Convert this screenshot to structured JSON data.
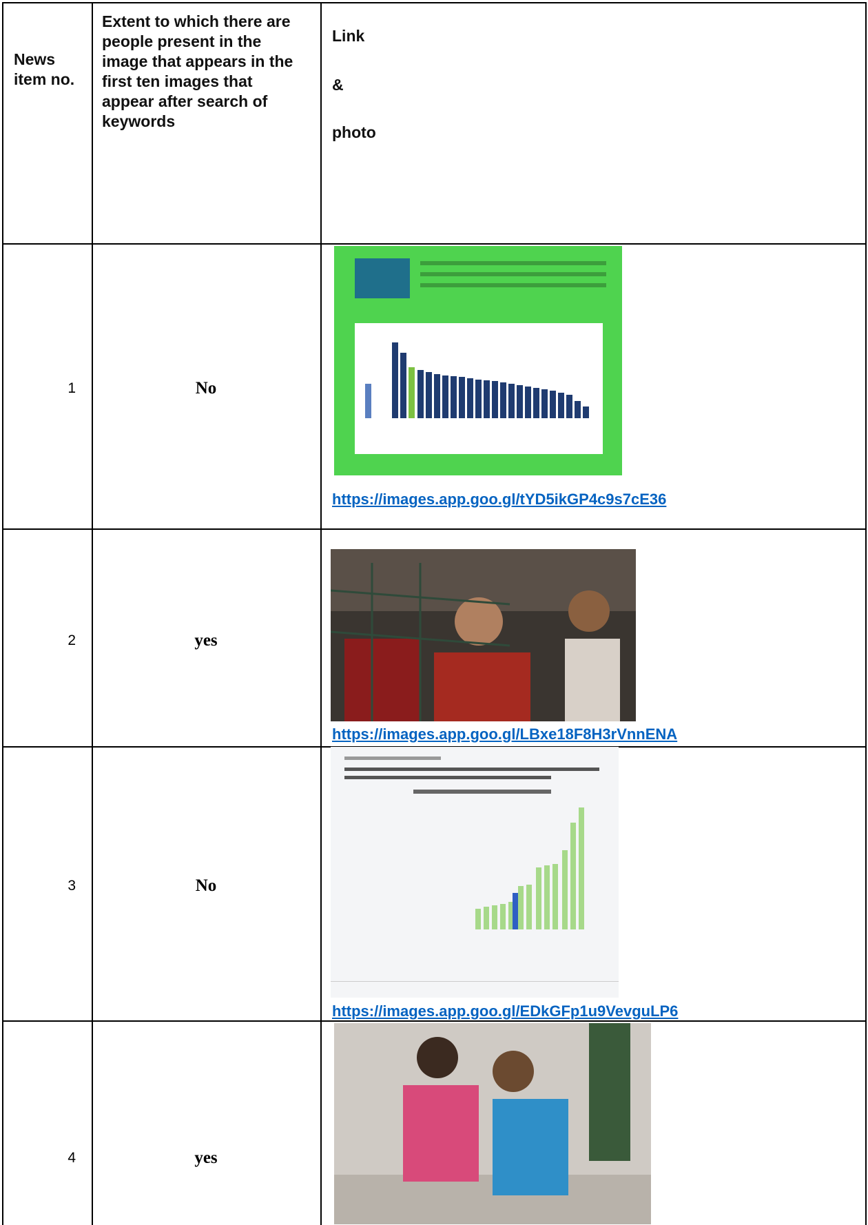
{
  "table": {
    "header": [
      "News item no.",
      "Extent to which there are people present in the image that appears in the first ten images that appear after search of keywords",
      [
        "Link",
        "&",
        "photo"
      ]
    ],
    "rows": [
      {
        "number": 1,
        "people": "No",
        "link": "https://images.app.goo.gl/tYD5ikGP4c9s7cE36"
      },
      {
        "number": 2,
        "people": "yes",
        "link": "https://images.app.goo.gl/LBxe18F8H3rVnnENA"
      },
      {
        "number": 3,
        "people": "No",
        "link": "https://images.app.goo.gl/EDkGFp1u9VevguLP6"
      },
      {
        "number": 4,
        "people": "yes"
      }
    ]
  }
}
